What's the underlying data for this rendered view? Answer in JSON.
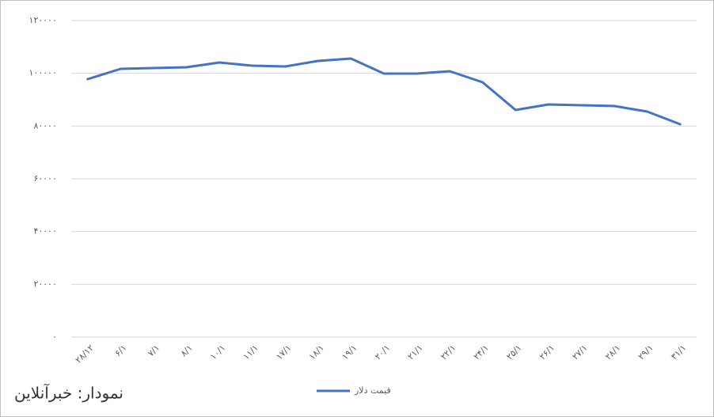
{
  "chart_data": {
    "type": "line",
    "categories": [
      "۲۸/۱۲",
      "۶/۱",
      "۷/۱",
      "۸/۱",
      "۱۰/۱",
      "۱۱/۱",
      "۱۷/۱",
      "۱۸/۱",
      "۱۹/۱",
      "۲۰/۱",
      "۲۱/۱",
      "۲۲/۱",
      "۲۴/۱",
      "۲۵/۱",
      "۲۶/۱",
      "۲۷/۱",
      "۲۸/۱",
      "۲۹/۱",
      "۳۱/۱"
    ],
    "series": [
      {
        "name": "قیمت دلار",
        "color": "#4472c4",
        "values": [
          97800,
          101700,
          102000,
          102300,
          104100,
          102900,
          102600,
          104700,
          105600,
          99900,
          99900,
          100800,
          96600,
          86100,
          88200,
          87900,
          87600,
          85500,
          80700
        ]
      }
    ],
    "ylim": [
      0,
      120000
    ],
    "yticks": [
      {
        "value": 0,
        "label": "۰"
      },
      {
        "value": 20000,
        "label": "۲۰۰۰۰"
      },
      {
        "value": 40000,
        "label": "۴۰۰۰۰"
      },
      {
        "value": 60000,
        "label": "۶۰۰۰۰"
      },
      {
        "value": 80000,
        "label": "۸۰۰۰۰"
      },
      {
        "value": 100000,
        "label": "۱۰۰۰۰۰"
      },
      {
        "value": 120000,
        "label": "۱۲۰۰۰۰"
      }
    ],
    "grid": true,
    "legend": "bottom",
    "annotation": "نمودار: خبرآنلاین"
  }
}
